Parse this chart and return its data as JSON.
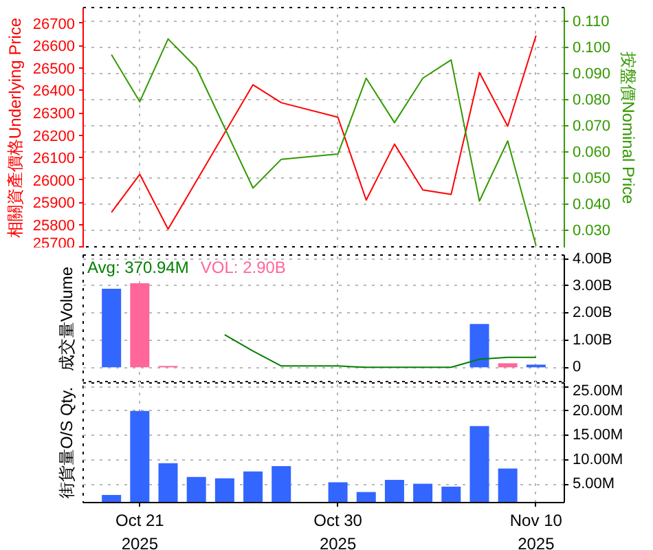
{
  "chart_data": [
    {
      "type": "line",
      "categories": [
        null,
        null,
        null,
        null,
        null,
        null,
        null,
        null,
        null,
        null,
        null,
        null,
        null,
        null,
        null,
        null
      ],
      "series": [
        {
          "color": "#ff0000",
          "values": [
            25855,
            26025,
            25780,
            25995,
            26210,
            26425,
            26345,
            null,
            26280,
            25910,
            26160,
            25955,
            25935,
            26480,
            26240,
            26645
          ]
        },
        {
          "color": "#339900",
          "axis": "y2",
          "values": [
            0.097,
            0.079,
            0.103,
            0.092,
            0.069,
            0.046,
            0.057,
            null,
            0.059,
            0.088,
            0.071,
            0.088,
            0.095,
            0.041,
            0.064,
            0.024
          ]
        }
      ],
      "ylabel": "相關資產價格Underlying Price",
      "y2label": "按盤價Nominal Price",
      "ylim": [
        25695,
        26770
      ],
      "yticks": [
        25700,
        25800,
        25900,
        26000,
        26100,
        26200,
        26300,
        26400,
        26500,
        26600,
        26700
      ],
      "y2lim": [
        0.023,
        0.115
      ],
      "y2ticks": [
        {
          "value": 0.03,
          "label": "0.030"
        },
        {
          "value": 0.04,
          "label": "0.040"
        },
        {
          "value": 0.05,
          "label": "0.050"
        },
        {
          "value": 0.06,
          "label": "0.060"
        },
        {
          "value": 0.07,
          "label": "0.070"
        },
        {
          "value": 0.08,
          "label": "0.080"
        },
        {
          "value": 0.09,
          "label": "0.090"
        },
        {
          "value": 0.1,
          "label": "0.100"
        },
        {
          "value": 0.11,
          "label": "0.110"
        }
      ],
      "grid": true,
      "tick_labels": "y"
    },
    {
      "type": "bar",
      "categories": [
        null,
        null,
        null,
        null,
        null,
        null,
        null,
        null,
        null,
        null,
        null,
        null,
        null,
        null,
        null,
        null
      ],
      "series": [
        {
          "type": "bar",
          "colors": [
            "#3366ff",
            "#ff6699",
            "#ff6699",
            null,
            null,
            null,
            null,
            null,
            null,
            null,
            null,
            null,
            null,
            "#3366ff",
            "#ff6699",
            "#3366ff"
          ],
          "values": [
            2900000000,
            3100000000,
            50000000,
            null,
            null,
            null,
            null,
            null,
            null,
            null,
            null,
            null,
            null,
            1600000000,
            150000000,
            100000000
          ]
        },
        {
          "type": "line",
          "color": "#008000",
          "values": [
            null,
            null,
            null,
            null,
            1200000000,
            600000000,
            50000000,
            null,
            50000000,
            0,
            0,
            0,
            0,
            300000000,
            370000000,
            370000000
          ]
        }
      ],
      "ylabel": "成交量Volume",
      "ylim": [
        -575000000,
        4140000000
      ],
      "yticks": [
        0,
        {
          "value": 1000000000,
          "label": "1.00B"
        },
        {
          "value": 2000000000,
          "label": "2.00B"
        },
        {
          "value": 3000000000,
          "label": "3.00B"
        },
        {
          "value": 4000000000,
          "label": "4.00B"
        }
      ],
      "annotations": [
        "Avg: 370.94M",
        "VOL: 2.90B"
      ],
      "grid": true,
      "tick_labels": "y"
    },
    {
      "type": "bar",
      "categories": [
        null,
        "Oct 21\n2025",
        null,
        null,
        null,
        null,
        null,
        null,
        "Oct 30\n2025",
        null,
        null,
        null,
        null,
        null,
        null,
        "Nov 10\n2025"
      ],
      "values": [
        2800000,
        20000000,
        9300000,
        6500000,
        6200000,
        7600000,
        8700000,
        null,
        5400000,
        3400000,
        5900000,
        5100000,
        4500000,
        16900000,
        8200000,
        null
      ],
      "color": "#3366ff",
      "ylabel": "街貨量O/S Qty.",
      "ylim": [
        1240000,
        25760000
      ],
      "yticks": [
        {
          "value": 5000000,
          "label": "5.00M"
        },
        {
          "value": 10000000,
          "label": "10.00M"
        },
        {
          "value": 15000000,
          "label": "15.00M"
        },
        {
          "value": 20000000,
          "label": "20.00M"
        },
        {
          "value": 25000000,
          "label": "25.00M"
        }
      ],
      "grid": true
    }
  ]
}
